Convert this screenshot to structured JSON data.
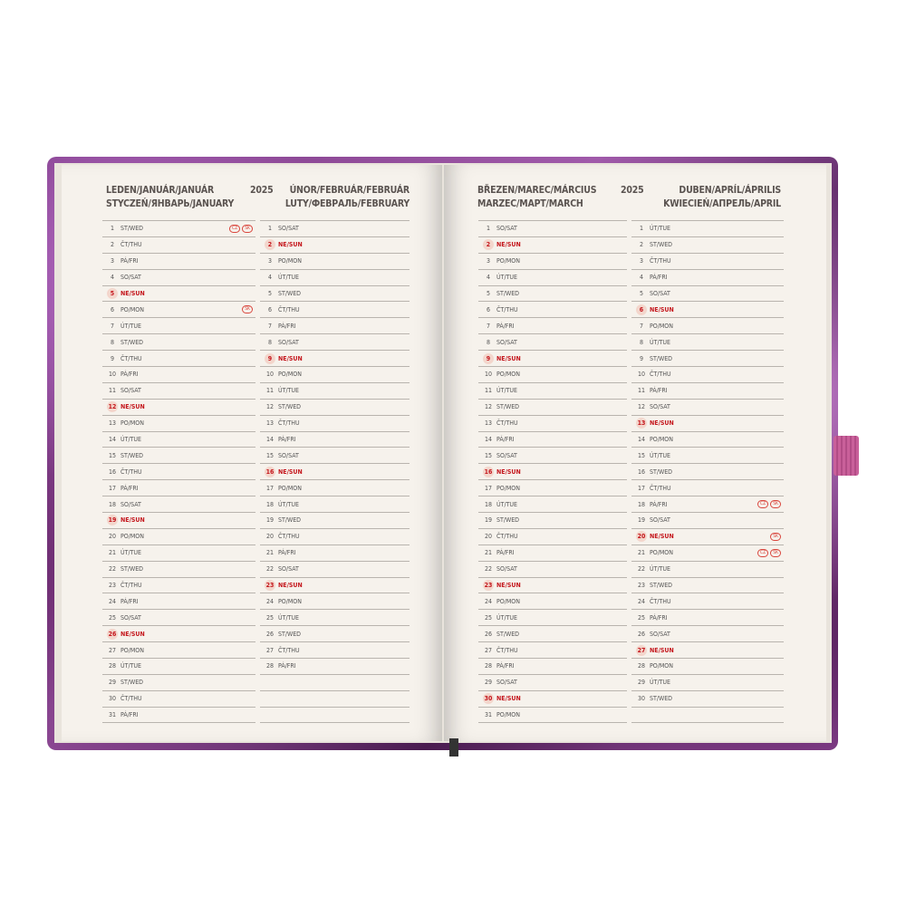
{
  "left_page": {
    "title_left": [
      "LEDEN/JANUÁR/JANUÁR",
      "STYCZEŃ/ЯНВАРЬ/JANUARY"
    ],
    "year": "2025",
    "title_right": [
      "ÚNOR/FEBRUÁR/FEBRUÁR",
      "LUTY/ФЕВРАЛЬ/FEBRUARY"
    ]
  },
  "right_page": {
    "title_left": [
      "BŘEZEN/MAREC/MÁRCIUS",
      "MARZEC/МАРТ/MARCH"
    ],
    "year": "2025",
    "title_right": [
      "DUBEN/APRÍL/ÁPRILIS",
      "KWIECIEŃ/АПРЕЛЬ/APRIL"
    ]
  },
  "colors": {
    "sunday": "#c4161c",
    "cover": "#8a4593",
    "page": "#f6f2ec",
    "band": "#c9609a"
  },
  "months": [
    {
      "rows": [
        {
          "d": "1",
          "w": "ST/WED",
          "h": [
            "CZ",
            "SK"
          ]
        },
        {
          "d": "2",
          "w": "ČT/THU"
        },
        {
          "d": "3",
          "w": "PÁ/FRI"
        },
        {
          "d": "4",
          "w": "SO/SAT"
        },
        {
          "d": "5",
          "w": "NE/SUN"
        },
        {
          "d": "6",
          "w": "PO/MON",
          "h": [
            "SK"
          ]
        },
        {
          "d": "7",
          "w": "ÚT/TUE"
        },
        {
          "d": "8",
          "w": "ST/WED"
        },
        {
          "d": "9",
          "w": "ČT/THU"
        },
        {
          "d": "10",
          "w": "PÁ/FRI"
        },
        {
          "d": "11",
          "w": "SO/SAT"
        },
        {
          "d": "12",
          "w": "NE/SUN"
        },
        {
          "d": "13",
          "w": "PO/MON"
        },
        {
          "d": "14",
          "w": "ÚT/TUE"
        },
        {
          "d": "15",
          "w": "ST/WED"
        },
        {
          "d": "16",
          "w": "ČT/THU"
        },
        {
          "d": "17",
          "w": "PÁ/FRI"
        },
        {
          "d": "18",
          "w": "SO/SAT"
        },
        {
          "d": "19",
          "w": "NE/SUN"
        },
        {
          "d": "20",
          "w": "PO/MON"
        },
        {
          "d": "21",
          "w": "ÚT/TUE"
        },
        {
          "d": "22",
          "w": "ST/WED"
        },
        {
          "d": "23",
          "w": "ČT/THU"
        },
        {
          "d": "24",
          "w": "PÁ/FRI"
        },
        {
          "d": "25",
          "w": "SO/SAT"
        },
        {
          "d": "26",
          "w": "NE/SUN"
        },
        {
          "d": "27",
          "w": "PO/MON"
        },
        {
          "d": "28",
          "w": "ÚT/TUE"
        },
        {
          "d": "29",
          "w": "ST/WED"
        },
        {
          "d": "30",
          "w": "ČT/THU"
        },
        {
          "d": "31",
          "w": "PÁ/FRI"
        }
      ]
    },
    {
      "rows": [
        {
          "d": "1",
          "w": "SO/SAT"
        },
        {
          "d": "2",
          "w": "NE/SUN"
        },
        {
          "d": "3",
          "w": "PO/MON"
        },
        {
          "d": "4",
          "w": "ÚT/TUE"
        },
        {
          "d": "5",
          "w": "ST/WED"
        },
        {
          "d": "6",
          "w": "ČT/THU"
        },
        {
          "d": "7",
          "w": "PÁ/FRI"
        },
        {
          "d": "8",
          "w": "SO/SAT"
        },
        {
          "d": "9",
          "w": "NE/SUN"
        },
        {
          "d": "10",
          "w": "PO/MON"
        },
        {
          "d": "11",
          "w": "ÚT/TUE"
        },
        {
          "d": "12",
          "w": "ST/WED"
        },
        {
          "d": "13",
          "w": "ČT/THU"
        },
        {
          "d": "14",
          "w": "PÁ/FRI"
        },
        {
          "d": "15",
          "w": "SO/SAT"
        },
        {
          "d": "16",
          "w": "NE/SUN"
        },
        {
          "d": "17",
          "w": "PO/MON"
        },
        {
          "d": "18",
          "w": "ÚT/TUE"
        },
        {
          "d": "19",
          "w": "ST/WED"
        },
        {
          "d": "20",
          "w": "ČT/THU"
        },
        {
          "d": "21",
          "w": "PÁ/FRI"
        },
        {
          "d": "22",
          "w": "SO/SAT"
        },
        {
          "d": "23",
          "w": "NE/SUN"
        },
        {
          "d": "24",
          "w": "PO/MON"
        },
        {
          "d": "25",
          "w": "ÚT/TUE"
        },
        {
          "d": "26",
          "w": "ST/WED"
        },
        {
          "d": "27",
          "w": "ČT/THU"
        },
        {
          "d": "28",
          "w": "PÁ/FRI"
        },
        {
          "d": "",
          "w": ""
        },
        {
          "d": "",
          "w": ""
        },
        {
          "d": "",
          "w": ""
        }
      ]
    },
    {
      "rows": [
        {
          "d": "1",
          "w": "SO/SAT"
        },
        {
          "d": "2",
          "w": "NE/SUN"
        },
        {
          "d": "3",
          "w": "PO/MON"
        },
        {
          "d": "4",
          "w": "ÚT/TUE"
        },
        {
          "d": "5",
          "w": "ST/WED"
        },
        {
          "d": "6",
          "w": "ČT/THU"
        },
        {
          "d": "7",
          "w": "PÁ/FRI"
        },
        {
          "d": "8",
          "w": "SO/SAT"
        },
        {
          "d": "9",
          "w": "NE/SUN"
        },
        {
          "d": "10",
          "w": "PO/MON"
        },
        {
          "d": "11",
          "w": "ÚT/TUE"
        },
        {
          "d": "12",
          "w": "ST/WED"
        },
        {
          "d": "13",
          "w": "ČT/THU"
        },
        {
          "d": "14",
          "w": "PÁ/FRI"
        },
        {
          "d": "15",
          "w": "SO/SAT"
        },
        {
          "d": "16",
          "w": "NE/SUN"
        },
        {
          "d": "17",
          "w": "PO/MON"
        },
        {
          "d": "18",
          "w": "ÚT/TUE"
        },
        {
          "d": "19",
          "w": "ST/WED"
        },
        {
          "d": "20",
          "w": "ČT/THU"
        },
        {
          "d": "21",
          "w": "PÁ/FRI"
        },
        {
          "d": "22",
          "w": "SO/SAT"
        },
        {
          "d": "23",
          "w": "NE/SUN"
        },
        {
          "d": "24",
          "w": "PO/MON"
        },
        {
          "d": "25",
          "w": "ÚT/TUE"
        },
        {
          "d": "26",
          "w": "ST/WED"
        },
        {
          "d": "27",
          "w": "ČT/THU"
        },
        {
          "d": "28",
          "w": "PÁ/FRI"
        },
        {
          "d": "29",
          "w": "SO/SAT"
        },
        {
          "d": "30",
          "w": "NE/SUN"
        },
        {
          "d": "31",
          "w": "PO/MON"
        }
      ]
    },
    {
      "rows": [
        {
          "d": "1",
          "w": "ÚT/TUE"
        },
        {
          "d": "2",
          "w": "ST/WED"
        },
        {
          "d": "3",
          "w": "ČT/THU"
        },
        {
          "d": "4",
          "w": "PÁ/FRI"
        },
        {
          "d": "5",
          "w": "SO/SAT"
        },
        {
          "d": "6",
          "w": "NE/SUN"
        },
        {
          "d": "7",
          "w": "PO/MON"
        },
        {
          "d": "8",
          "w": "ÚT/TUE"
        },
        {
          "d": "9",
          "w": "ST/WED"
        },
        {
          "d": "10",
          "w": "ČT/THU"
        },
        {
          "d": "11",
          "w": "PÁ/FRI"
        },
        {
          "d": "12",
          "w": "SO/SAT"
        },
        {
          "d": "13",
          "w": "NE/SUN"
        },
        {
          "d": "14",
          "w": "PO/MON"
        },
        {
          "d": "15",
          "w": "ÚT/TUE"
        },
        {
          "d": "16",
          "w": "ST/WED"
        },
        {
          "d": "17",
          "w": "ČT/THU"
        },
        {
          "d": "18",
          "w": "PÁ/FRI",
          "h": [
            "CZ",
            "SK"
          ]
        },
        {
          "d": "19",
          "w": "SO/SAT"
        },
        {
          "d": "20",
          "w": "NE/SUN",
          "h": [
            "SK"
          ]
        },
        {
          "d": "21",
          "w": "PO/MON",
          "h": [
            "CZ",
            "SK"
          ]
        },
        {
          "d": "22",
          "w": "ÚT/TUE"
        },
        {
          "d": "23",
          "w": "ST/WED"
        },
        {
          "d": "24",
          "w": "ČT/THU"
        },
        {
          "d": "25",
          "w": "PÁ/FRI"
        },
        {
          "d": "26",
          "w": "SO/SAT"
        },
        {
          "d": "27",
          "w": "NE/SUN"
        },
        {
          "d": "28",
          "w": "PO/MON"
        },
        {
          "d": "29",
          "w": "ÚT/TUE"
        },
        {
          "d": "30",
          "w": "ST/WED"
        },
        {
          "d": "",
          "w": ""
        }
      ]
    }
  ]
}
